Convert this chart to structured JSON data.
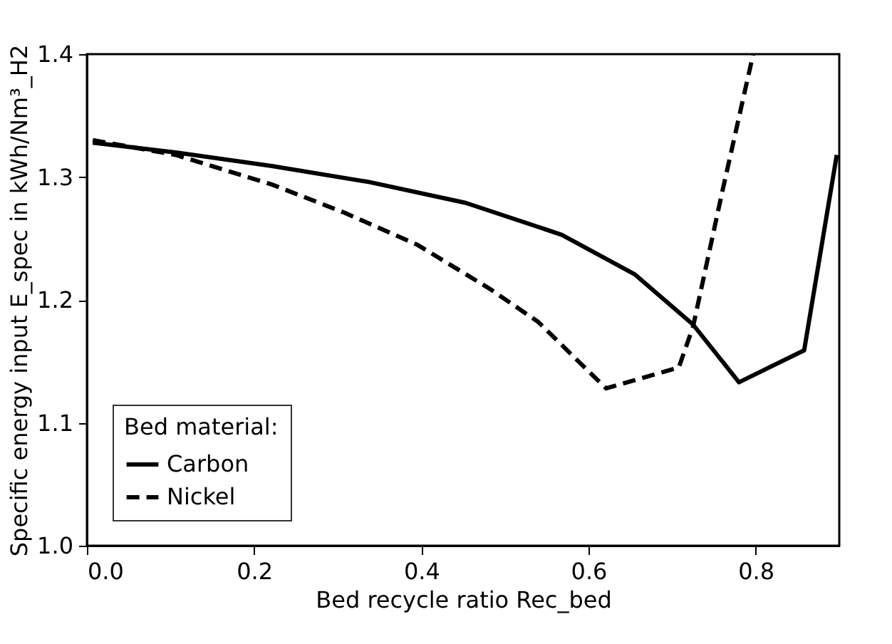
{
  "chart_data": {
    "type": "line",
    "xlabel": "Bed recycle ratio Rec_bed",
    "ylabel": "Specific energy input E_spec in kWh/Nm³_H2",
    "legend_title": "Bed material:",
    "legend": "bottom left",
    "grid": false,
    "xlim": [
      0,
      0.9
    ],
    "ylim": [
      1.0,
      1.4
    ],
    "xticks": [
      {
        "value": 0,
        "label": "0.0"
      },
      0.2,
      0.4,
      0.6,
      0.8
    ],
    "yticks": [
      {
        "value": 1,
        "label": "1.0"
      },
      1.1,
      1.2,
      1.3,
      1.4
    ],
    "series": [
      {
        "name": "Carbon",
        "color": "#000000",
        "line_style": "solid",
        "x": [
          0.007,
          0.106,
          0.221,
          0.337,
          0.453,
          0.568,
          0.655,
          0.725,
          0.78,
          0.858,
          0.897
        ],
        "values": [
          1.328,
          1.32,
          1.309,
          1.296,
          1.279,
          1.253,
          1.221,
          1.18,
          1.133,
          1.159,
          1.318
        ]
      },
      {
        "name": "Nickel",
        "color": "#000000",
        "line_style": "dashed",
        "x": [
          0.007,
          0.106,
          0.221,
          0.308,
          0.395,
          0.482,
          0.54,
          0.621,
          0.708,
          0.725,
          0.76,
          0.797
        ],
        "values": [
          1.33,
          1.318,
          1.294,
          1.271,
          1.245,
          1.209,
          1.182,
          1.128,
          1.145,
          1.178,
          1.288,
          1.4
        ]
      }
    ]
  }
}
